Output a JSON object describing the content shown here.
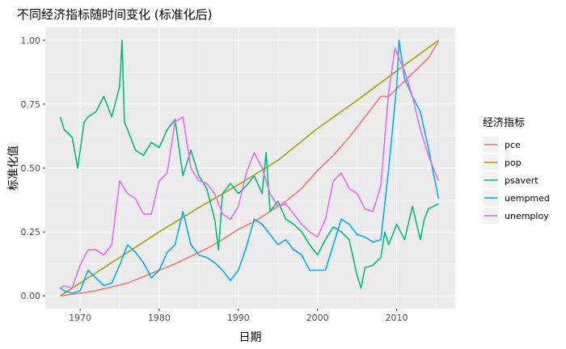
{
  "chart_data": {
    "type": "line",
    "title": "不同经济指标随时间变化 (标准化后)",
    "xlabel": "日期",
    "ylabel": "标准化值",
    "xlim": [
      1965.6,
      2017.4
    ],
    "ylim": [
      -0.05,
      1.05
    ],
    "x_ticks": [
      1970,
      1980,
      1990,
      2000,
      2010
    ],
    "y_ticks": [
      0.0,
      0.25,
      0.5,
      0.75,
      1.0
    ],
    "x_tick_labels": [
      "1970",
      "1980",
      "1990",
      "2000",
      "2010"
    ],
    "y_tick_labels": [
      "0.00",
      "0.25",
      "0.50",
      "0.75",
      "1.00"
    ],
    "grid": true,
    "legend": {
      "title": "经济指标",
      "position": "right"
    },
    "series": [
      {
        "name": "pce",
        "color": "#F8766D",
        "x": [
          1967.5,
          1970,
          1972,
          1974,
          1976,
          1978,
          1980,
          1982,
          1984,
          1986,
          1988,
          1990,
          1992,
          1994,
          1996,
          1998,
          2000,
          2002,
          2004,
          2006,
          2008,
          2009,
          2010,
          2012,
          2014,
          2015.3
        ],
        "y": [
          0.0,
          0.01,
          0.02,
          0.035,
          0.05,
          0.075,
          0.1,
          0.125,
          0.155,
          0.185,
          0.22,
          0.26,
          0.29,
          0.33,
          0.37,
          0.42,
          0.49,
          0.55,
          0.62,
          0.7,
          0.78,
          0.78,
          0.81,
          0.87,
          0.93,
          0.995
        ]
      },
      {
        "name": "pop",
        "color": "#A3A500",
        "x": [
          1967.5,
          1970,
          1975,
          1980,
          1985,
          1990,
          1995,
          2000,
          2005,
          2010,
          2015.3
        ],
        "y": [
          0.0,
          0.05,
          0.15,
          0.25,
          0.345,
          0.435,
          0.53,
          0.655,
          0.765,
          0.88,
          1.0
        ]
      },
      {
        "name": "psavert",
        "color": "#00BF7D",
        "x": [
          1967.5,
          1968,
          1969,
          1969.7,
          1970.5,
          1971,
          1972,
          1973,
          1974,
          1975,
          1975.3,
          1975.6,
          1976,
          1977,
          1978,
          1979,
          1980,
          1981,
          1982,
          1983,
          1984,
          1985,
          1986,
          1987,
          1987.5,
          1988,
          1989,
          1990,
          1991,
          1992,
          1993,
          1993.5,
          1994,
          1995,
          1996,
          1997,
          1998,
          1999,
          2000,
          2001,
          2002,
          2003,
          2004,
          2005,
          2005.5,
          2006,
          2007,
          2008,
          2008.5,
          2009,
          2010,
          2011,
          2012,
          2013,
          2013.5,
          2014,
          2015.3
        ],
        "y": [
          0.7,
          0.65,
          0.62,
          0.5,
          0.68,
          0.7,
          0.72,
          0.78,
          0.7,
          0.82,
          1.0,
          0.68,
          0.65,
          0.57,
          0.55,
          0.6,
          0.58,
          0.65,
          0.69,
          0.47,
          0.57,
          0.47,
          0.42,
          0.3,
          0.18,
          0.4,
          0.44,
          0.4,
          0.43,
          0.47,
          0.4,
          0.56,
          0.33,
          0.37,
          0.3,
          0.28,
          0.25,
          0.2,
          0.16,
          0.22,
          0.27,
          0.25,
          0.22,
          0.08,
          0.03,
          0.11,
          0.12,
          0.15,
          0.25,
          0.2,
          0.28,
          0.22,
          0.35,
          0.22,
          0.3,
          0.34,
          0.36
        ]
      },
      {
        "name": "uempmed",
        "color": "#00B0F6",
        "x": [
          1967.5,
          1968,
          1969,
          1970,
          1971,
          1972,
          1973,
          1974,
          1975,
          1976,
          1977,
          1978,
          1979,
          1980,
          1981,
          1982,
          1983,
          1984,
          1985,
          1986,
          1987,
          1988,
          1989,
          1990,
          1991,
          1992,
          1993,
          1994,
          1995,
          1996,
          1997,
          1998,
          1999,
          2000,
          2001,
          2002,
          2003,
          2004,
          2005,
          2006,
          2007,
          2008,
          2009,
          2010,
          2010.3,
          2011,
          2012,
          2013,
          2014,
          2015.3
        ],
        "y": [
          0.03,
          0.02,
          0.01,
          0.02,
          0.1,
          0.07,
          0.04,
          0.05,
          0.12,
          0.2,
          0.17,
          0.13,
          0.07,
          0.1,
          0.17,
          0.2,
          0.33,
          0.2,
          0.16,
          0.15,
          0.13,
          0.1,
          0.06,
          0.1,
          0.19,
          0.3,
          0.28,
          0.24,
          0.2,
          0.22,
          0.18,
          0.16,
          0.1,
          0.1,
          0.1,
          0.2,
          0.3,
          0.28,
          0.24,
          0.23,
          0.21,
          0.22,
          0.5,
          0.82,
          1.0,
          0.85,
          0.78,
          0.72,
          0.58,
          0.38
        ]
      },
      {
        "name": "unemploy",
        "color": "#E76BF3",
        "x": [
          1967.5,
          1968,
          1969,
          1970,
          1971,
          1972,
          1973,
          1974,
          1975,
          1976,
          1977,
          1978,
          1979,
          1980,
          1981,
          1982,
          1983,
          1984,
          1985,
          1986,
          1987,
          1988,
          1989,
          1990,
          1991,
          1992,
          1993,
          1994,
          1995,
          1996,
          1997,
          1998,
          1999,
          2000,
          2001,
          2002,
          2003,
          2004,
          2005,
          2006,
          2007,
          2008,
          2009,
          2009.8,
          2010,
          2011,
          2012,
          2013,
          2014,
          2015.3
        ],
        "y": [
          0.03,
          0.04,
          0.03,
          0.12,
          0.18,
          0.18,
          0.16,
          0.2,
          0.45,
          0.4,
          0.38,
          0.32,
          0.32,
          0.45,
          0.48,
          0.68,
          0.7,
          0.5,
          0.45,
          0.44,
          0.4,
          0.32,
          0.3,
          0.35,
          0.48,
          0.56,
          0.5,
          0.4,
          0.35,
          0.36,
          0.32,
          0.28,
          0.25,
          0.23,
          0.3,
          0.45,
          0.48,
          0.42,
          0.4,
          0.34,
          0.33,
          0.43,
          0.8,
          0.97,
          0.95,
          0.88,
          0.78,
          0.65,
          0.55,
          0.45
        ]
      }
    ]
  }
}
